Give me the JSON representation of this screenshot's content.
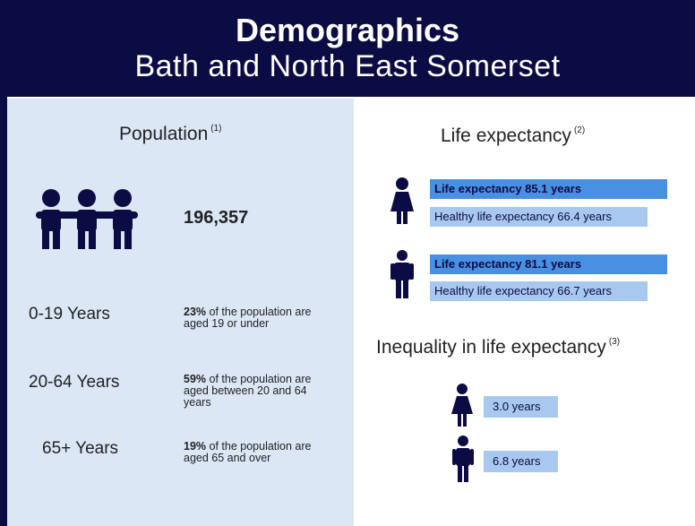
{
  "header": {
    "title": "Demographics",
    "subtitle": "Bath and North East Somerset"
  },
  "population": {
    "heading": "Population",
    "note": "(1)",
    "total": "196,357",
    "groups": [
      {
        "label": "0-19 Years",
        "percent": "23%",
        "text": "of the population are aged 19 or under"
      },
      {
        "label": "20-64 Years",
        "percent": "59%",
        "text": "of the population are aged between 20 and 64 years"
      },
      {
        "label": "65+ Years",
        "percent": "19%",
        "text": "of the population are aged 65 and over"
      }
    ]
  },
  "life_expectancy": {
    "heading": "Life expectancy",
    "note": "(2)",
    "female": {
      "life": "Life expectancy 85.1 years",
      "healthy": "Healthy life expectancy 66.4 years"
    },
    "male": {
      "life": "Life expectancy 81.1 years",
      "healthy": "Healthy life expectancy 66.7 years"
    }
  },
  "inequality": {
    "heading": "Inequality in life expectancy",
    "note": "(3)",
    "female": "3.0 years",
    "male": "6.8 years"
  }
}
